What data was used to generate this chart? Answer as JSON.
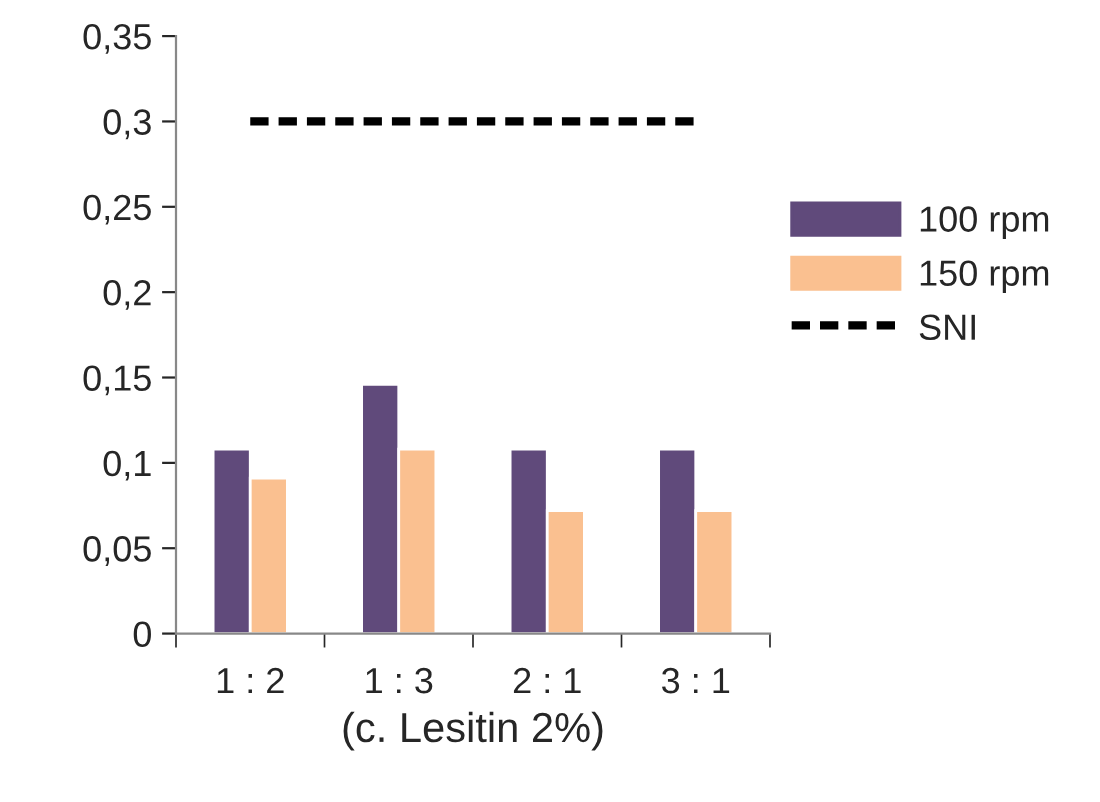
{
  "chart_data": {
    "type": "bar",
    "xlabel": "(c. Lesitin 2%)",
    "categories": [
      "1 : 2",
      "1 : 3",
      "2 : 1",
      "3 : 1"
    ],
    "series": [
      {
        "name": "100 rpm",
        "color": "#604a7b",
        "values": [
          0.108,
          0.146,
          0.108,
          0.108
        ]
      },
      {
        "name": "150 rpm",
        "color": "#fac090",
        "values": [
          0.091,
          0.108,
          0.072,
          0.072
        ]
      },
      {
        "name": "SNI",
        "type": "line",
        "color": "#000000",
        "line_style": "dashed",
        "marker": "none",
        "values": [
          0.3,
          0.3,
          0.3,
          0.3
        ]
      }
    ],
    "ylim": [
      0,
      0.35
    ],
    "yticks": [
      {
        "value": 0,
        "label": "0"
      },
      {
        "value": 0.05,
        "label": "0,05"
      },
      {
        "value": 0.1,
        "label": "0,1"
      },
      {
        "value": 0.15,
        "label": "0,15"
      },
      {
        "value": 0.2,
        "label": "0,2"
      },
      {
        "value": 0.25,
        "label": "0,25"
      },
      {
        "value": 0.3,
        "label": "0,3"
      },
      {
        "value": 0.35,
        "label": "0,35"
      }
    ],
    "grid": false,
    "legend": "right"
  }
}
